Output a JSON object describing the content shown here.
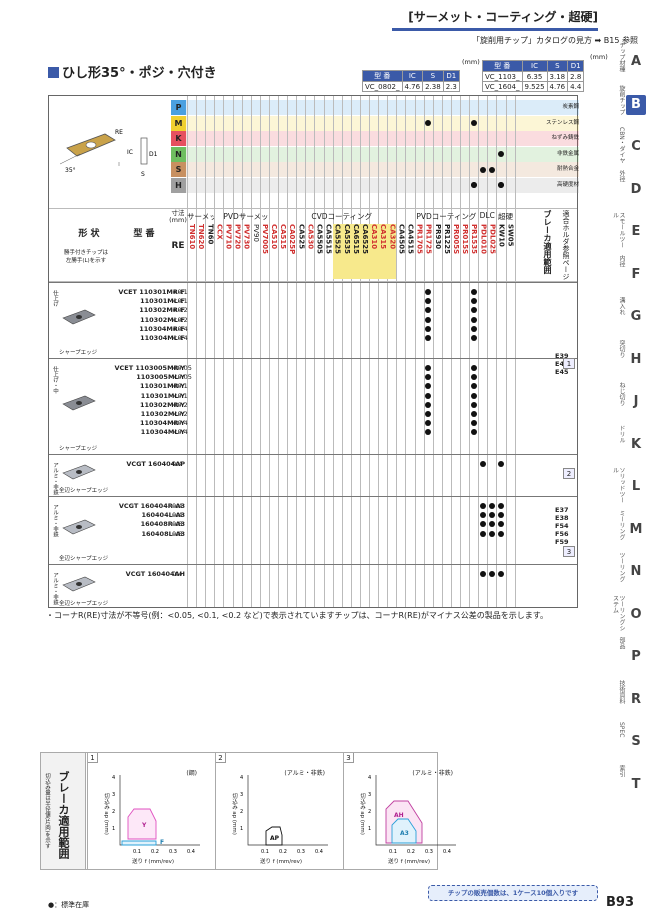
{
  "header": {
    "title": "[サーメット・コーティング・超硬]",
    "catalog_ref": "「旋削用チップ」カタログの見方 ➡ B15 参照"
  },
  "side_nav": [
    {
      "label": "チップ材種",
      "letter": "A"
    },
    {
      "label": "旋削チップ",
      "letter": "B",
      "active": true
    },
    {
      "label": "CBN・ダイヤ",
      "letter": "C"
    },
    {
      "label": "外径",
      "letter": "D"
    },
    {
      "label": "スモールツール",
      "letter": "E"
    },
    {
      "label": "内径",
      "letter": "F"
    },
    {
      "label": "溝入れ",
      "letter": "G"
    },
    {
      "label": "突切り",
      "letter": "H"
    },
    {
      "label": "ねじ切り",
      "letter": "J"
    },
    {
      "label": "ドリル",
      "letter": "K"
    },
    {
      "label": "ソリッドツール",
      "letter": "L"
    },
    {
      "label": "ミーリング",
      "letter": "M"
    },
    {
      "label": "ツーリング",
      "letter": "N"
    },
    {
      "label": "ツーリングシステム",
      "letter": "O"
    },
    {
      "label": "部品",
      "letter": "P"
    },
    {
      "label": "技術資料",
      "letter": "R"
    },
    {
      "label": "SPEC",
      "letter": "S"
    },
    {
      "label": "索引",
      "letter": "T"
    }
  ],
  "section_title": "ひし形35°・ポジ・穴付き",
  "dim_tables": {
    "unit": "(mm)",
    "headers": [
      "型 番",
      "IC",
      "S",
      "D1"
    ],
    "left": [
      [
        "VC_0802_",
        "4.76",
        "2.38",
        "2.3"
      ]
    ],
    "right": [
      [
        "VC_1103_",
        "6.35",
        "3.18",
        "2.8"
      ],
      [
        "VC_1604_",
        "9.525",
        "4.76",
        "4.4"
      ]
    ]
  },
  "materials": [
    {
      "code": "P",
      "name": "炭素鋼",
      "color": "#4aa0e0"
    },
    {
      "code": "M",
      "name": "ステンレス鋼",
      "color": "#f0d030"
    },
    {
      "code": "K",
      "name": "ねずみ鋳鉄",
      "color": "#e65060"
    },
    {
      "code": "N",
      "name": "非鉄金属",
      "color": "#6fbe60"
    },
    {
      "code": "S",
      "name": "耐熱合金",
      "color": "#c89060"
    },
    {
      "code": "H",
      "name": "高硬度材",
      "color": "#a0a0a0"
    }
  ],
  "table_headers": {
    "shape": "形 状",
    "shape_note": "勝手付きチップは\n左勝手(L)を示す",
    "model": "型 番",
    "dim": "寸法\n(mm)",
    "re": "RE",
    "groups": [
      "サーメット",
      "PVDサーメット",
      "CVDコーティング",
      "PVDコーティング",
      "DLC",
      "超硬"
    ],
    "breaker": "ブレーカ適用範囲",
    "holder": "適合ホルダ参照ページ"
  },
  "grades": [
    "TN610",
    "TN620",
    "TN60",
    "CCX",
    "PV710",
    "PV720",
    "PV730",
    "PV90",
    "PV7005",
    "CA510",
    "CA515",
    "CA025P",
    "CA525",
    "CA530",
    "CA5505",
    "CA5515",
    "CA5525",
    "CA5535",
    "CA6515",
    "CA6525",
    "CA310",
    "CA315",
    "CA320",
    "CA4505",
    "CA4515",
    "PR1705",
    "PR1725",
    "PR930",
    "PR1225",
    "PR005S",
    "PR015S",
    "PR1535",
    "PDL010",
    "PDL025",
    "KW10",
    "SW05"
  ],
  "rows": [
    {
      "group": "仕上げ",
      "caption": "シャープエッジ",
      "models": "VCET 110301MR-F\n110301ML-F\n110302MR-F\n110302ML-F\n110304MR-F\n110304ML-F",
      "re": "<0.1\n<0.1\n<0.2\n<0.2\n<0.4\n<0.4"
    },
    {
      "group": "仕上げ・中",
      "caption": "シャープエッジ",
      "models": "VCET 1103005MR-Y\n1103005ML-Y\n110301MR-Y\n110301ML-Y\n110302MR-Y\n110302ML-Y\n110304MR-Y\n110304ML-Y",
      "re": "<0.05\n<0.05\n<0.1\n<0.1\n<0.2\n<0.2\n<0.4\n<0.4"
    },
    {
      "group": "アルミ・非鉄",
      "caption": "全辺シャープエッジ",
      "models": "VCGT 160404AP",
      "re": "0.4"
    },
    {
      "group": "アルミ・非鉄",
      "caption": "全辺シャープエッジ",
      "models": "VCGT 160404R-A3\n160404L-A3\n160408R-A3\n160408L-A3",
      "re": "0.4\n0.4\n0.8\n0.8"
    },
    {
      "group": "アルミ・非鉄",
      "caption": "全辺シャープエッジ",
      "models": "VCGT 160404AH",
      "re": "0.4"
    }
  ],
  "holder_pages": {
    "a": "E39\nE40\nE45",
    "b": "E37\nE38\nF54\nF56\nF59"
  },
  "breaker_badges": [
    "1",
    "2",
    "3"
  ],
  "note": "・コーナR(RE)寸法が不等号(例：<0.05, <0.1, <0.2 など)で表示されていますチップは、コーナR(RE)がマイナス公差の製品を示します。",
  "breaker_figure": {
    "title": "ブレーカ適用範囲",
    "subtitle": "切込み量は半径値(片肉)を示す",
    "ylabel": "切込み ap (mm)",
    "xlabel": "送り f (mm/rev)",
    "panels": [
      {
        "num": "1",
        "sub": "(鋼)",
        "labels": [
          "Y",
          "F"
        ]
      },
      {
        "num": "2",
        "sub": "(アルミ・非鉄)",
        "labels": [
          "AP"
        ]
      },
      {
        "num": "3",
        "sub": "(アルミ・非鉄)",
        "labels": [
          "AH",
          "A3"
        ]
      }
    ],
    "xticks": [
      "0.1",
      "0.2",
      "0.3",
      "0.4"
    ],
    "yticks": [
      "1",
      "2",
      "3",
      "4"
    ]
  },
  "footer": {
    "legend": "●：標準在庫",
    "pack": "チップの販売個数は、1ケース10個入りです",
    "page": "B93"
  }
}
